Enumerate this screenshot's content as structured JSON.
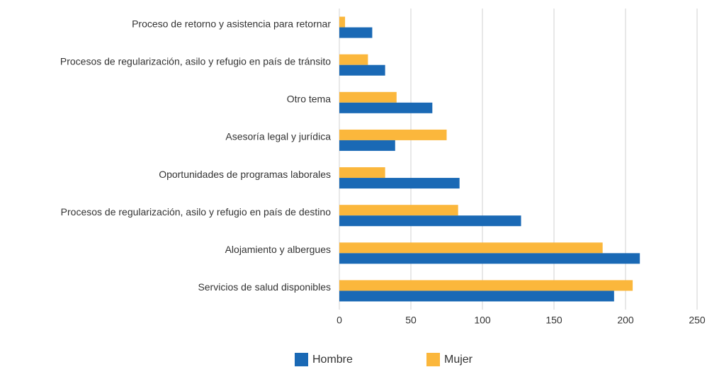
{
  "chart_data": {
    "type": "hbar",
    "categories": [
      "Proceso de retorno y asistencia para retornar",
      "Procesos de regularización, asilo y refugio en país de tránsito",
      "Otro tema",
      "Asesoría legal y jurídica",
      "Oportunidades de programas laborales",
      "Procesos de regularización, asilo y refugio en país de destino",
      "Alojamiento y albergues",
      "Servicios de salud disponibles"
    ],
    "series": [
      {
        "name": "Hombre",
        "color": "#1a69b5",
        "values": [
          23,
          32,
          65,
          39,
          84,
          127,
          210,
          192
        ]
      },
      {
        "name": "Mujer",
        "color": "#fbb73c",
        "values": [
          4,
          20,
          40,
          75,
          32,
          83,
          184,
          205
        ]
      }
    ],
    "xlim": [
      0,
      250
    ],
    "xticks": [
      0,
      50,
      100,
      150,
      200,
      250
    ],
    "grid": true,
    "legend": "bottom"
  }
}
